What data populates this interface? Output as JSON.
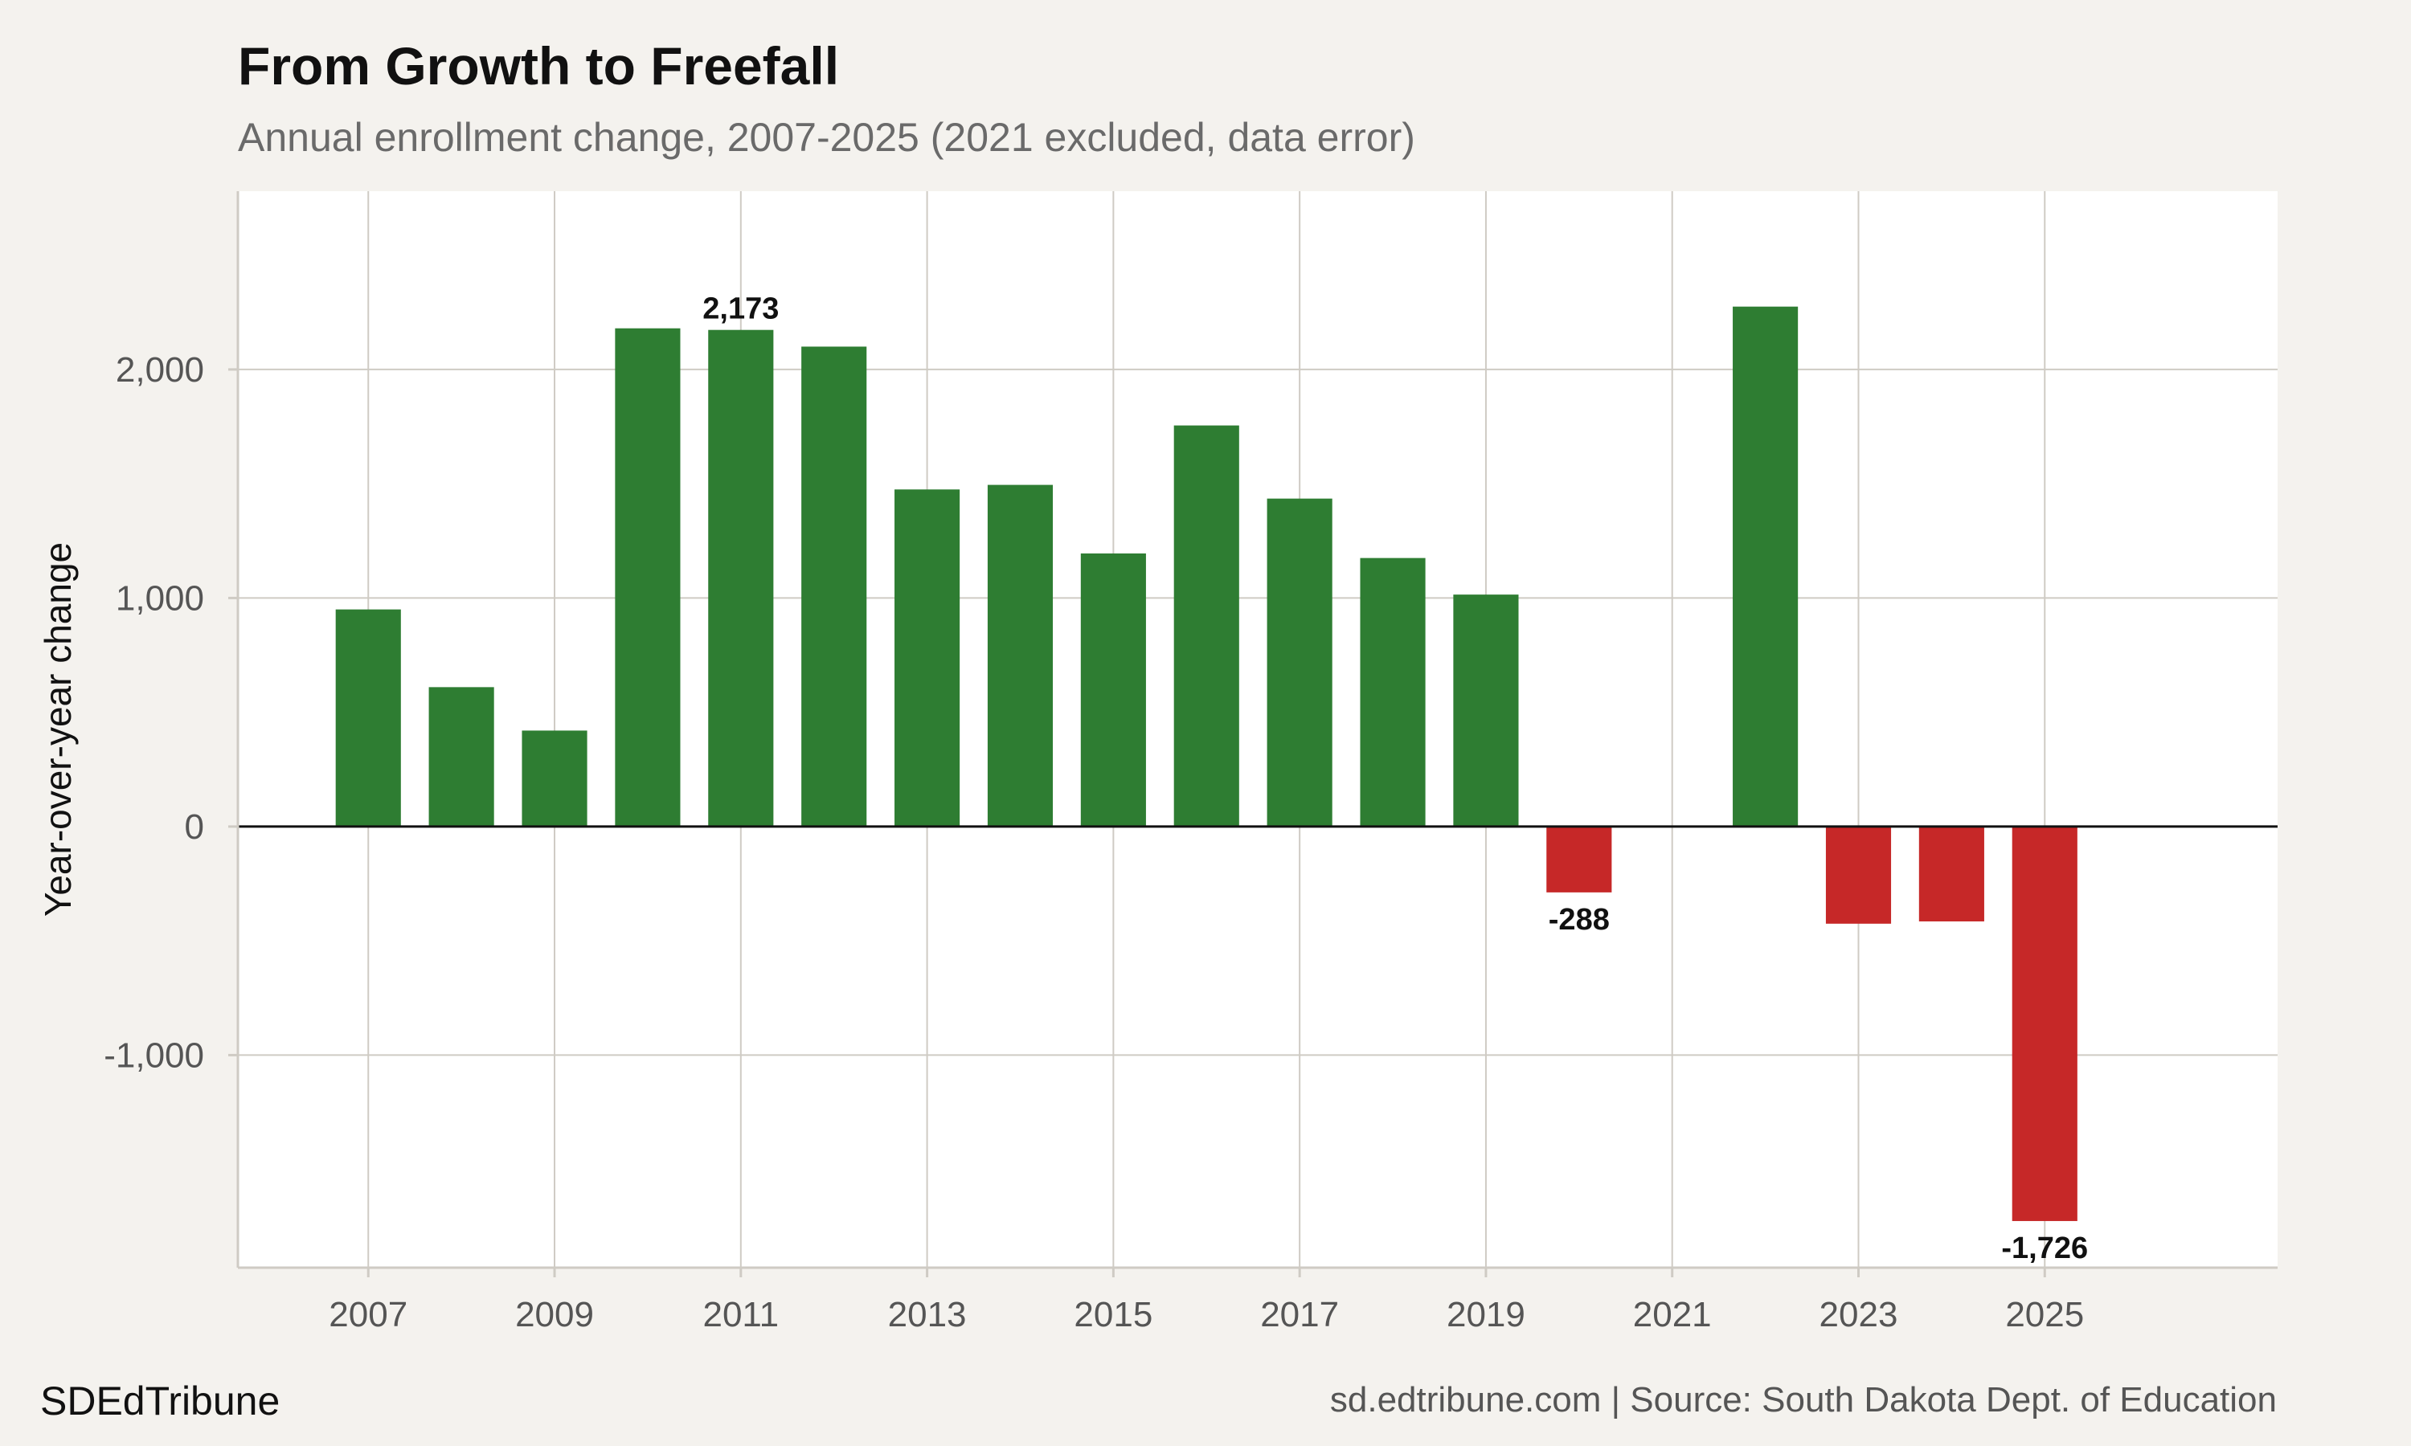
{
  "header": {
    "title": "From Growth to Freefall",
    "subtitle": "Annual enrollment change, 2007-2025 (2021 excluded, data error)"
  },
  "footer": {
    "brand": "SDEdTribune",
    "source": "sd.edtribune.com | Source: South Dakota Dept. of Education"
  },
  "colors": {
    "positive": "#2e7d32",
    "negative": "#c62828",
    "grid": "#cfcbc4",
    "zero_line": "#111111",
    "plot_background": "#ffffff"
  },
  "chart_data": {
    "type": "bar",
    "title": "From Growth to Freefall",
    "subtitle": "Annual enrollment change, 2007-2025 (2021 excluded, data error)",
    "xlabel": "",
    "ylabel": "Year-over-year change",
    "x": [
      2007,
      2008,
      2009,
      2010,
      2011,
      2012,
      2013,
      2014,
      2015,
      2016,
      2017,
      2018,
      2019,
      2020,
      2022,
      2023,
      2024,
      2025
    ],
    "values": [
      950,
      610,
      420,
      2180,
      2173,
      2100,
      1475,
      1495,
      1195,
      1755,
      1435,
      1175,
      1015,
      -288,
      2275,
      -425,
      -415,
      -1726
    ],
    "xlim": [
      2005.6,
      2027.5
    ],
    "ylim": [
      -1930,
      2780
    ],
    "x_ticks": [
      2007,
      2009,
      2011,
      2013,
      2015,
      2017,
      2019,
      2021,
      2023,
      2025
    ],
    "y_ticks": [
      -1000,
      0,
      1000,
      2000
    ],
    "x_tick_labels": [
      "2007",
      "2009",
      "2011",
      "2013",
      "2015",
      "2017",
      "2019",
      "2021",
      "2023",
      "2025"
    ],
    "y_tick_labels": [
      "-1,000",
      "0",
      "1,000",
      "2,000"
    ],
    "bar_width_years": 0.7,
    "grid": true,
    "legend": "none",
    "annotations": [
      {
        "x": 2011,
        "value": 2173,
        "text": "2,173"
      },
      {
        "x": 2020,
        "value": -288,
        "text": "-288"
      },
      {
        "x": 2025,
        "value": -1726,
        "text": "-1,726"
      }
    ]
  }
}
